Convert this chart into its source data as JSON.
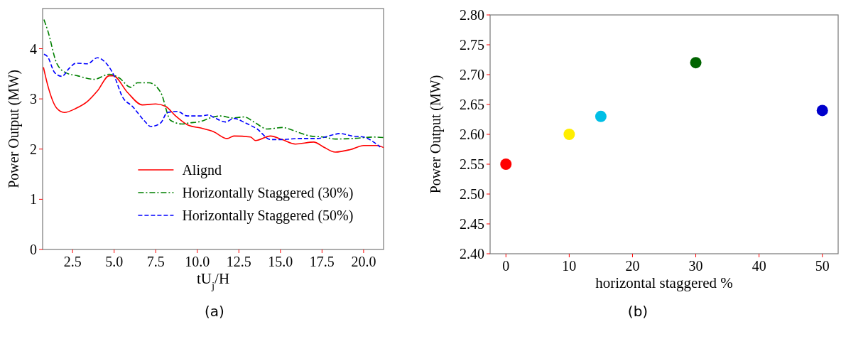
{
  "chart_data": [
    {
      "type": "line",
      "xlabel": "tU$_{j}$/H",
      "ylabel": "Power Output (MW)",
      "xlim": [
        0.7,
        21.2
      ],
      "ylim": [
        0,
        4.8
      ],
      "xticks": [
        {
          "value": 2.5,
          "label": "2.5"
        },
        {
          "value": 5,
          "label": "5.0"
        },
        {
          "value": 7.5,
          "label": "7.5"
        },
        {
          "value": 10,
          "label": "10.0"
        },
        {
          "value": 12.5,
          "label": "12.5"
        },
        {
          "value": 15,
          "label": "15.0"
        },
        {
          "value": 17.5,
          "label": "17.5"
        },
        {
          "value": 20,
          "label": "20.0"
        }
      ],
      "yticks": [
        0,
        1,
        2,
        3,
        4
      ],
      "legend": "bottom right",
      "grid": false,
      "annotations": [
        "(a)"
      ],
      "series": [
        {
          "name": "Alignd",
          "color": "#ff0000",
          "line_style": "solid",
          "x": [
            0.75,
            1.0,
            1.56,
            2.0,
            2.7,
            3.4,
            4.0,
            4.7,
            4.95,
            5.8,
            6.7,
            7.5,
            8.1,
            8.7,
            9.5,
            10.2,
            10.95,
            11.8,
            12.2,
            13.2,
            13.5,
            14.4,
            15.1,
            15.9,
            17.0,
            17.6,
            18.3,
            19.2,
            20.0,
            20.8,
            21.2
          ],
          "values": [
            3.63,
            3.28,
            2.81,
            2.73,
            2.81,
            2.95,
            3.16,
            3.46,
            3.46,
            3.13,
            2.88,
            2.9,
            2.85,
            2.66,
            2.47,
            2.42,
            2.35,
            2.21,
            2.26,
            2.24,
            2.17,
            2.26,
            2.19,
            2.1,
            2.14,
            2.04,
            1.94,
            1.99,
            2.07,
            2.07,
            2.03
          ]
        },
        {
          "name": "Horizontally Staggered (30%)",
          "color": "#008000",
          "line_style": "dashdot",
          "x": [
            0.78,
            1.0,
            1.56,
            2.1,
            2.8,
            3.8,
            4.7,
            5.3,
            6.0,
            6.4,
            7.1,
            7.8,
            8.4,
            9.1,
            9.5,
            10.2,
            10.95,
            11.4,
            12.1,
            12.8,
            13.5,
            14.2,
            15.1,
            16.1,
            16.8,
            17.6,
            18.3,
            19.3,
            20.6,
            21.2
          ],
          "values": [
            4.58,
            4.37,
            3.7,
            3.52,
            3.46,
            3.39,
            3.49,
            3.42,
            3.23,
            3.32,
            3.32,
            3.13,
            2.57,
            2.5,
            2.52,
            2.55,
            2.64,
            2.66,
            2.62,
            2.64,
            2.52,
            2.4,
            2.43,
            2.33,
            2.26,
            2.24,
            2.2,
            2.21,
            2.24,
            2.23
          ]
        },
        {
          "name": "Horizontally Staggered (50%)",
          "color": "#0000ff",
          "line_style": "dashed",
          "x": [
            0.78,
            1.0,
            1.43,
            1.86,
            2.3,
            2.7,
            3.4,
            4.0,
            4.4,
            5.0,
            5.5,
            6.1,
            6.8,
            7.2,
            7.8,
            8.2,
            8.8,
            9.4,
            10.2,
            10.65,
            10.95,
            11.7,
            12.2,
            12.9,
            13.6,
            14.4,
            15.1,
            16.1,
            17.2,
            18.1,
            18.6,
            19.3,
            20.0,
            20.6,
            21.0
          ],
          "values": [
            3.89,
            3.84,
            3.52,
            3.45,
            3.61,
            3.71,
            3.7,
            3.82,
            3.75,
            3.46,
            3.04,
            2.85,
            2.57,
            2.45,
            2.52,
            2.73,
            2.75,
            2.66,
            2.66,
            2.68,
            2.64,
            2.54,
            2.61,
            2.52,
            2.4,
            2.19,
            2.19,
            2.21,
            2.21,
            2.28,
            2.31,
            2.26,
            2.24,
            2.14,
            2.04
          ]
        }
      ]
    },
    {
      "type": "scatter",
      "xlabel": "horizontal staggered %",
      "ylabel": "Power Output (MW)",
      "xlim": [
        -2.5,
        52.5
      ],
      "ylim": [
        2.4,
        2.8
      ],
      "xticks": [
        0,
        10,
        20,
        30,
        40,
        50
      ],
      "yticks": [
        {
          "value": 2.4,
          "label": "2.40"
        },
        {
          "value": 2.45,
          "label": "2.45"
        },
        {
          "value": 2.5,
          "label": "2.50"
        },
        {
          "value": 2.55,
          "label": "2.55"
        },
        {
          "value": 2.6,
          "label": "2.60"
        },
        {
          "value": 2.65,
          "label": "2.65"
        },
        {
          "value": 2.7,
          "label": "2.70"
        },
        {
          "value": 2.75,
          "label": "2.75"
        },
        {
          "value": 2.8,
          "label": "2.80"
        }
      ],
      "grid": false,
      "legend": false,
      "marker": "circle",
      "annotations": [
        "(b)"
      ],
      "series": [
        {
          "x": [
            0,
            10,
            15,
            30,
            50
          ],
          "values": [
            2.55,
            2.6,
            2.63,
            2.72,
            2.64
          ],
          "colors": [
            "#ff0000",
            "#ffee00",
            "#00bfe6",
            "#006400",
            "#0000cc"
          ]
        }
      ]
    }
  ]
}
